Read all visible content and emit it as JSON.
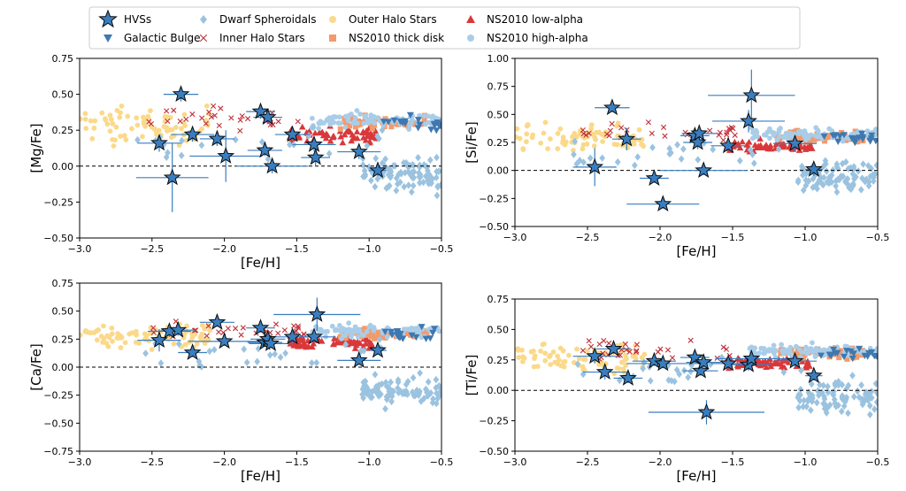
{
  "legend": {
    "items": [
      {
        "label": "HVSs",
        "marker": "star",
        "color": "#3a7ebf"
      },
      {
        "label": "Galactic Bulge",
        "marker": "triangle-down",
        "color": "#3f78b0"
      },
      {
        "label": "Dwarf Spheroidals",
        "marker": "diamond",
        "color": "#9bc3e0"
      },
      {
        "label": "Inner Halo Stars",
        "marker": "x",
        "color": "#c0303a"
      },
      {
        "label": "Outer Halo Stars",
        "marker": "circle",
        "color": "#fbd98a"
      },
      {
        "label": "NS2010 thick disk",
        "marker": "square",
        "color": "#f39a6c"
      },
      {
        "label": "NS2010 low-alpha",
        "marker": "triangle-up",
        "color": "#d9383a"
      },
      {
        "label": "NS2010 high-alpha",
        "marker": "circle",
        "color": "#a9cde8"
      }
    ]
  },
  "chart_data": [
    {
      "type": "scatter",
      "xlabel": "[Fe/H]",
      "ylabel": "[Mg/Fe]",
      "xlim": [
        -3.0,
        -0.5
      ],
      "ylim": [
        -0.5,
        0.75
      ],
      "xticks": [
        "−3.0",
        "−2.5",
        "−2.0",
        "−1.5",
        "−1.0",
        "−0.5"
      ],
      "yticks": [
        "−0.50",
        "−0.25",
        "0.00",
        "0.25",
        "0.50",
        "0.75"
      ],
      "reference_line": 0.0,
      "hvs": [
        {
          "x": -2.45,
          "y": 0.16,
          "xerr": 0.15,
          "yerr": 0.06
        },
        {
          "x": -2.36,
          "y": -0.08,
          "xerr": 0.25,
          "yerr": 0.24
        },
        {
          "x": -2.3,
          "y": 0.5,
          "xerr": 0.12,
          "yerr": 0.05
        },
        {
          "x": -2.22,
          "y": 0.22,
          "xerr": 0.15,
          "yerr": 0.05
        },
        {
          "x": -2.05,
          "y": 0.19,
          "xerr": 0.12,
          "yerr": 0.05
        },
        {
          "x": -1.99,
          "y": 0.07,
          "xerr": 0.25,
          "yerr": 0.18
        },
        {
          "x": -1.75,
          "y": 0.38,
          "xerr": 0.1,
          "yerr": 0.05
        },
        {
          "x": -1.72,
          "y": 0.11,
          "xerr": 0.12,
          "yerr": 0.04
        },
        {
          "x": -1.7,
          "y": 0.34,
          "xerr": 0.1,
          "yerr": 0.04
        },
        {
          "x": -1.67,
          "y": 0.0,
          "xerr": 0.25,
          "yerr": 0.05
        },
        {
          "x": -1.53,
          "y": 0.22,
          "xerr": 0.12,
          "yerr": 0.04
        },
        {
          "x": -1.38,
          "y": 0.15,
          "xerr": 0.15,
          "yerr": 0.05
        },
        {
          "x": -1.37,
          "y": 0.06,
          "xerr": 0.1,
          "yerr": 0.06
        },
        {
          "x": -1.07,
          "y": 0.1,
          "xerr": 0.15,
          "yerr": 0.05
        },
        {
          "x": -0.94,
          "y": -0.03,
          "xerr": 0.06,
          "yerr": 0.04
        }
      ]
    },
    {
      "type": "scatter",
      "xlabel": "[Fe/H]",
      "ylabel": "[Si/Fe]",
      "xlim": [
        -3.0,
        -0.5
      ],
      "ylim": [
        -0.55,
        1.0
      ],
      "xticks": [
        "−3.0",
        "−2.5",
        "−2.0",
        "−1.5",
        "−1.0",
        "−0.5"
      ],
      "yticks": [
        "−0.50",
        "−0.25",
        "0.00",
        "0.25",
        "0.50",
        "0.75",
        "1.00"
      ],
      "reference_line": 0.0,
      "hvs": [
        {
          "x": -2.45,
          "y": 0.03,
          "xerr": 0.15,
          "yerr": 0.17
        },
        {
          "x": -2.33,
          "y": 0.56,
          "xerr": 0.12,
          "yerr": 0.04
        },
        {
          "x": -2.23,
          "y": 0.28,
          "xerr": 0.1,
          "yerr": 0.1
        },
        {
          "x": -2.04,
          "y": -0.07,
          "xerr": 0.1,
          "yerr": 0.04
        },
        {
          "x": -1.98,
          "y": -0.3,
          "xerr": 0.25,
          "yerr": 0.04
        },
        {
          "x": -1.76,
          "y": 0.31,
          "xerr": 0.1,
          "yerr": 0.05
        },
        {
          "x": -1.74,
          "y": 0.25,
          "xerr": 0.1,
          "yerr": 0.06
        },
        {
          "x": -1.73,
          "y": 0.33,
          "xerr": 0.12,
          "yerr": 0.08
        },
        {
          "x": -1.7,
          "y": 0.0,
          "xerr": 0.3,
          "yerr": 0.04
        },
        {
          "x": -1.53,
          "y": 0.22,
          "xerr": 0.12,
          "yerr": 0.04
        },
        {
          "x": -1.39,
          "y": 0.44,
          "xerr": 0.25,
          "yerr": 0.1
        },
        {
          "x": -1.37,
          "y": 0.67,
          "xerr": 0.3,
          "yerr": 0.23
        },
        {
          "x": -1.07,
          "y": 0.24,
          "xerr": 0.15,
          "yerr": 0.07
        },
        {
          "x": -0.94,
          "y": 0.01,
          "xerr": 0.06,
          "yerr": 0.06
        }
      ]
    },
    {
      "type": "scatter",
      "xlabel": "[Fe/H]",
      "ylabel": "[Ca/Fe]",
      "xlim": [
        -3.0,
        -0.5
      ],
      "ylim": [
        -0.75,
        0.8
      ],
      "xticks": [
        "−3.0",
        "−2.5",
        "−2.0",
        "−1.5",
        "−1.0",
        "−0.5"
      ],
      "yticks": [
        "−0.75",
        "−0.50",
        "−0.25",
        "0.00",
        "0.25",
        "0.50",
        "0.75"
      ],
      "reference_line": 0.0,
      "hvs": [
        {
          "x": -2.45,
          "y": 0.24,
          "xerr": 0.15,
          "yerr": 0.1
        },
        {
          "x": -2.38,
          "y": 0.32,
          "xerr": 0.15,
          "yerr": 0.05
        },
        {
          "x": -2.32,
          "y": 0.33,
          "xerr": 0.12,
          "yerr": 0.05
        },
        {
          "x": -2.22,
          "y": 0.13,
          "xerr": 0.1,
          "yerr": 0.04
        },
        {
          "x": -2.05,
          "y": 0.4,
          "xerr": 0.12,
          "yerr": 0.04
        },
        {
          "x": -2.0,
          "y": 0.23,
          "xerr": 0.25,
          "yerr": 0.04
        },
        {
          "x": -1.75,
          "y": 0.35,
          "xerr": 0.1,
          "yerr": 0.04
        },
        {
          "x": -1.72,
          "y": 0.22,
          "xerr": 0.12,
          "yerr": 0.04
        },
        {
          "x": -1.7,
          "y": 0.25,
          "xerr": 0.12,
          "yerr": 0.04
        },
        {
          "x": -1.68,
          "y": 0.21,
          "xerr": 0.15,
          "yerr": 0.04
        },
        {
          "x": -1.53,
          "y": 0.27,
          "xerr": 0.12,
          "yerr": 0.05
        },
        {
          "x": -1.38,
          "y": 0.27,
          "xerr": 0.15,
          "yerr": 0.05
        },
        {
          "x": -1.36,
          "y": 0.47,
          "xerr": 0.3,
          "yerr": 0.15
        },
        {
          "x": -1.07,
          "y": 0.06,
          "xerr": 0.15,
          "yerr": 0.04
        },
        {
          "x": -0.94,
          "y": 0.15,
          "xerr": 0.06,
          "yerr": 0.04
        }
      ]
    },
    {
      "type": "scatter",
      "xlabel": "[Fe/H]",
      "ylabel": "[Ti/Fe]",
      "xlim": [
        -3.0,
        -0.5
      ],
      "ylim": [
        -0.5,
        0.75
      ],
      "xticks": [
        "−3.0",
        "−2.5",
        "−2.0",
        "−1.5",
        "−1.0",
        "−0.5"
      ],
      "yticks": [
        "−0.50",
        "−0.25",
        "0.00",
        "0.25",
        "0.50",
        "0.75"
      ],
      "reference_line": 0.0,
      "hvs": [
        {
          "x": -2.45,
          "y": 0.28,
          "xerr": 0.15,
          "yerr": 0.06
        },
        {
          "x": -2.38,
          "y": 0.15,
          "xerr": 0.15,
          "yerr": 0.06
        },
        {
          "x": -2.32,
          "y": 0.34,
          "xerr": 0.12,
          "yerr": 0.04
        },
        {
          "x": -2.22,
          "y": 0.1,
          "xerr": 0.1,
          "yerr": 0.04
        },
        {
          "x": -2.04,
          "y": 0.24,
          "xerr": 0.15,
          "yerr": 0.04
        },
        {
          "x": -1.98,
          "y": 0.22,
          "xerr": 0.25,
          "yerr": 0.04
        },
        {
          "x": -1.76,
          "y": 0.27,
          "xerr": 0.1,
          "yerr": 0.04
        },
        {
          "x": -1.72,
          "y": 0.16,
          "xerr": 0.12,
          "yerr": 0.04
        },
        {
          "x": -1.7,
          "y": 0.23,
          "xerr": 0.12,
          "yerr": 0.04
        },
        {
          "x": -1.68,
          "y": -0.18,
          "xerr": 0.4,
          "yerr": 0.1
        },
        {
          "x": -1.53,
          "y": 0.22,
          "xerr": 0.12,
          "yerr": 0.04
        },
        {
          "x": -1.39,
          "y": 0.21,
          "xerr": 0.15,
          "yerr": 0.05
        },
        {
          "x": -1.37,
          "y": 0.26,
          "xerr": 0.25,
          "yerr": 0.07
        },
        {
          "x": -1.07,
          "y": 0.24,
          "xerr": 0.15,
          "yerr": 0.05
        },
        {
          "x": -0.94,
          "y": 0.12,
          "xerr": 0.06,
          "yerr": 0.04
        }
      ]
    }
  ]
}
